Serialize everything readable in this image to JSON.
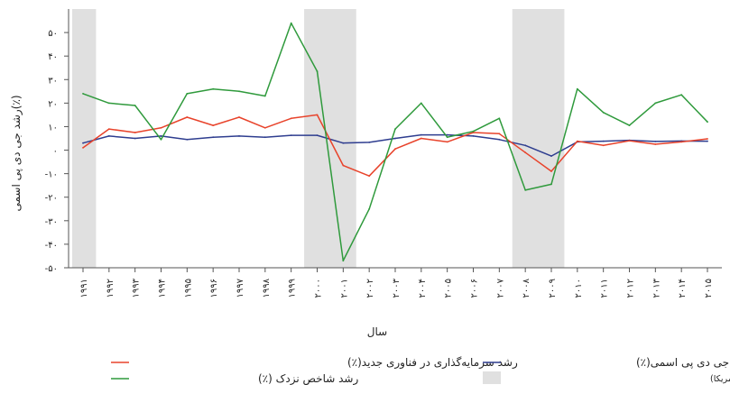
{
  "chart_data": {
    "type": "line",
    "x": [
      "۱۹۹۱",
      "۱۹۹۲",
      "۱۹۹۳",
      "۱۹۹۴",
      "۱۹۹۵",
      "۱۹۹۶",
      "۱۹۹۷",
      "۱۹۹۸",
      "۱۹۹۹",
      "۲۰۰۰",
      "۲۰۰۱",
      "۲۰۰۲",
      "۲۰۰۳",
      "۲۰۰۴",
      "۲۰۰۵",
      "۲۰۰۶",
      "۲۰۰۷",
      "۲۰۰۸",
      "۲۰۰۹",
      "۲۰۱۰",
      "۲۰۱۱",
      "۲۰۱۲",
      "۲۰۱۳",
      "۲۰۱۴",
      "۲۰۱۵"
    ],
    "y_ticks": [
      {
        "value": 50,
        "label": "۵۰"
      },
      {
        "value": 40,
        "label": "۴۰"
      },
      {
        "value": 30,
        "label": "۳۰"
      },
      {
        "value": 20,
        "label": "۲۰"
      },
      {
        "value": 10,
        "label": "۱۰"
      },
      {
        "value": 0,
        "label": "۰"
      },
      {
        "value": -10,
        "label": "-۱۰"
      },
      {
        "value": -20,
        "label": "-۲۰"
      },
      {
        "value": -30,
        "label": "-۳۰"
      },
      {
        "value": -40,
        "label": "-۴۰"
      },
      {
        "value": -50,
        "label": "-۵۰"
      }
    ],
    "ylim": [
      -50,
      60
    ],
    "xlabel": "سال",
    "ylabel": "رشد جی دی پی اسمی(٪)",
    "series": [
      {
        "name": "رشد جی دی پی اسمی(٪)",
        "color": "#2e3d8f",
        "values": [
          3,
          6,
          5,
          6,
          4.5,
          5.5,
          6,
          5.5,
          6.3,
          6.3,
          3,
          3.3,
          5,
          6.5,
          6.5,
          6,
          4.5,
          2,
          -2.5,
          3.5,
          3.8,
          4.2,
          3.7,
          3.9,
          3.8
        ]
      },
      {
        "name": "رشد سرمایه‌گذاری در فناوری جدید(٪)",
        "color": "#e8432b",
        "values": [
          1,
          9,
          7.5,
          9.5,
          14,
          10.5,
          14,
          9.5,
          13.5,
          15,
          -6.5,
          -11,
          0.5,
          5,
          3.5,
          7.5,
          7,
          -1,
          -9,
          3.8,
          2,
          4,
          2.5,
          3.5,
          4.8
        ]
      },
      {
        "name": "رشد شاخص نزدک (٪)",
        "color": "#2f9a3c",
        "values": [
          24,
          20,
          19,
          4.5,
          24,
          26,
          25,
          23,
          54,
          33.5,
          -47,
          -25,
          9,
          20,
          5.5,
          8,
          13.5,
          -17,
          -14.5,
          26,
          16,
          10.5,
          20,
          23.5,
          12
        ]
      }
    ],
    "recessions": [
      {
        "start": 1991,
        "end": 1991
      },
      {
        "start": 2000,
        "end": 2001
      },
      {
        "start": 2008,
        "end": 2009
      }
    ],
    "recession_label": "سالهای رکود (از اداره ملی تحقیقات اقتصادی آمریکا)",
    "recession_color": "#e0e0e0",
    "legend_position": "bottom"
  }
}
